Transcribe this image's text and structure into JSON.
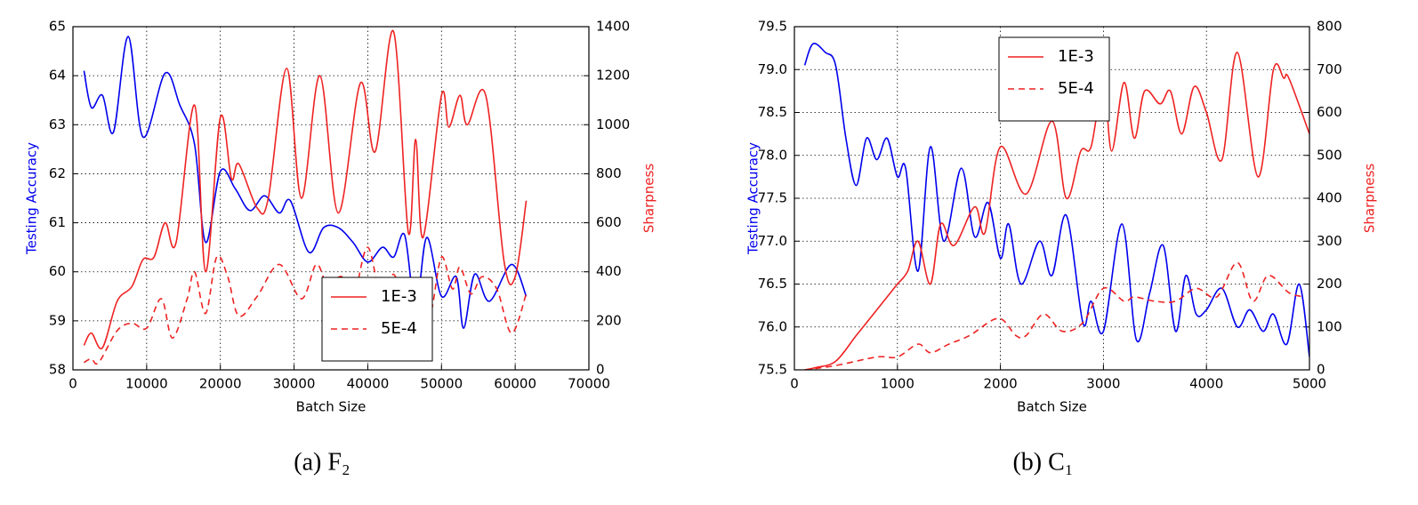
{
  "chart_data": [
    {
      "type": "line",
      "caption": "(a) F₂",
      "xlabel": "Batch Size",
      "ylabel": "Testing Accuracy",
      "y2label": "Sharpness",
      "xlim": [
        0,
        70000
      ],
      "xticks": [
        0,
        10000,
        20000,
        30000,
        40000,
        50000,
        60000,
        70000
      ],
      "ylim": [
        58,
        65
      ],
      "yticks": [
        58,
        59,
        60,
        61,
        62,
        63,
        64,
        65
      ],
      "y2lim": [
        0,
        1400
      ],
      "y2ticks": [
        0,
        200,
        400,
        600,
        800,
        1000,
        1200,
        1400
      ],
      "grid": true,
      "legend": "lower center",
      "series": [
        {
          "color": "#0000ee",
          "dash": false,
          "x": [
            1500,
            2500,
            4000,
            5500,
            7500,
            9500,
            12500,
            14500,
            16500,
            18000,
            20000,
            22000,
            24000,
            26000,
            28000,
            29500,
            32000,
            34000,
            36000,
            38000,
            40000,
            42000,
            43500,
            45000,
            46500,
            48000,
            50000,
            52000,
            53000,
            54500,
            56500,
            59500,
            61500
          ],
          "values": [
            64.1,
            63.35,
            63.6,
            62.85,
            64.8,
            62.75,
            64.05,
            63.4,
            62.6,
            60.6,
            62.05,
            61.7,
            61.25,
            61.55,
            61.2,
            61.45,
            60.4,
            60.9,
            60.9,
            60.6,
            60.2,
            60.5,
            60.3,
            60.75,
            59.25,
            60.7,
            59.5,
            59.9,
            58.85,
            59.95,
            59.4,
            60.15,
            59.5
          ]
        },
        {
          "name": "1E-3",
          "color": "#ee2222",
          "dash": false,
          "axis": "y2",
          "x": [
            1500,
            2500,
            4000,
            6000,
            8000,
            9500,
            11000,
            12500,
            14000,
            16500,
            18000,
            20000,
            21500,
            22500,
            25000,
            26500,
            29000,
            31000,
            33500,
            36000,
            39000,
            41000,
            43500,
            45500,
            46500,
            47500,
            50000,
            51000,
            52500,
            53500,
            56000,
            58500,
            60000,
            61500
          ],
          "values": [
            100,
            150,
            90,
            280,
            340,
            450,
            460,
            600,
            520,
            1080,
            400,
            1030,
            780,
            840,
            660,
            700,
            1230,
            700,
            1200,
            640,
            1170,
            890,
            1380,
            560,
            940,
            540,
            1120,
            990,
            1120,
            1000,
            1120,
            440,
            380,
            690
          ]
        },
        {
          "name": "5E-4",
          "color": "#ee2222",
          "dash": true,
          "axis": "y2",
          "x": [
            1500,
            2500,
            3500,
            6000,
            8000,
            10000,
            12000,
            13500,
            15500,
            16500,
            18000,
            19500,
            21000,
            22500,
            25000,
            28000,
            31000,
            33000,
            34500,
            36500,
            38000,
            40000,
            42000,
            43500,
            45500,
            47500,
            48500,
            50000,
            51500,
            52500,
            54000,
            55500,
            57500,
            59500,
            61500
          ],
          "values": [
            30,
            45,
            30,
            160,
            190,
            170,
            290,
            130,
            290,
            400,
            230,
            460,
            380,
            220,
            300,
            430,
            290,
            430,
            350,
            380,
            290,
            500,
            260,
            390,
            230,
            360,
            230,
            460,
            330,
            420,
            310,
            380,
            330,
            150,
            310
          ]
        }
      ]
    },
    {
      "type": "line",
      "caption": "(b) C₁",
      "xlabel": "Batch Size",
      "ylabel": "Testing Accuracy",
      "y2label": "Sharpness",
      "xlim": [
        0,
        5000
      ],
      "xticks": [
        0,
        1000,
        2000,
        3000,
        4000,
        5000
      ],
      "ylim": [
        75.5,
        79.5
      ],
      "yticks": [
        75.5,
        {
          "value": 76,
          "label": "76.0"
        },
        76.5,
        {
          "value": 77,
          "label": "77.0"
        },
        77.5,
        {
          "value": 78,
          "label": "78.0"
        },
        78.5,
        {
          "value": 79,
          "label": "79.0"
        },
        79.5
      ],
      "y2lim": [
        0,
        800
      ],
      "y2ticks": [
        0,
        100,
        200,
        300,
        400,
        500,
        600,
        700,
        800
      ],
      "grid": true,
      "legend": "upper left",
      "series": [
        {
          "color": "#0000ee",
          "dash": false,
          "x": [
            100,
            180,
            300,
            400,
            500,
            600,
            700,
            800,
            900,
            1000,
            1080,
            1200,
            1320,
            1450,
            1620,
            1750,
            1880,
            2000,
            2080,
            2200,
            2380,
            2500,
            2640,
            2800,
            2880,
            3000,
            3180,
            3320,
            3450,
            3580,
            3700,
            3800,
            3900,
            4000,
            4150,
            4300,
            4420,
            4550,
            4650,
            4780,
            4900,
            5000
          ],
          "values": [
            79.05,
            79.3,
            79.2,
            79.05,
            78.2,
            77.65,
            78.2,
            77.95,
            78.2,
            77.75,
            77.85,
            76.65,
            78.1,
            77.0,
            77.85,
            77.05,
            77.45,
            76.8,
            77.2,
            76.5,
            77.0,
            76.6,
            77.3,
            76.05,
            76.3,
            75.95,
            77.2,
            75.85,
            76.4,
            76.95,
            75.95,
            76.6,
            76.15,
            76.2,
            76.45,
            76.0,
            76.2,
            75.95,
            76.15,
            75.8,
            76.5,
            75.65
          ]
        },
        {
          "name": "1E-3",
          "color": "#ee2222",
          "dash": false,
          "axis": "y2",
          "x": [
            100,
            200,
            400,
            600,
            800,
            900,
            1000,
            1100,
            1200,
            1320,
            1420,
            1550,
            1750,
            1850,
            2000,
            2250,
            2500,
            2640,
            2780,
            2880,
            3000,
            3080,
            3200,
            3300,
            3400,
            3550,
            3650,
            3760,
            3880,
            4000,
            4150,
            4300,
            4500,
            4650,
            4750,
            4800,
            5000
          ],
          "values": [
            0,
            5,
            20,
            80,
            140,
            170,
            200,
            230,
            300,
            200,
            340,
            290,
            380,
            320,
            520,
            410,
            580,
            400,
            510,
            520,
            670,
            510,
            670,
            540,
            650,
            620,
            650,
            550,
            660,
            600,
            490,
            740,
            450,
            700,
            680,
            680,
            550
          ]
        },
        {
          "name": "5E-4",
          "color": "#ee2222",
          "dash": true,
          "axis": "y2",
          "x": [
            100,
            400,
            800,
            1000,
            1200,
            1320,
            1500,
            1700,
            1980,
            2150,
            2250,
            2420,
            2600,
            2800,
            3000,
            3200,
            3300,
            3500,
            3700,
            3900,
            4100,
            4300,
            4450,
            4600,
            4800,
            4950
          ],
          "values": [
            0,
            10,
            30,
            30,
            60,
            40,
            60,
            80,
            120,
            80,
            80,
            130,
            90,
            110,
            190,
            160,
            170,
            160,
            160,
            190,
            170,
            250,
            160,
            220,
            180,
            170
          ]
        }
      ]
    }
  ]
}
